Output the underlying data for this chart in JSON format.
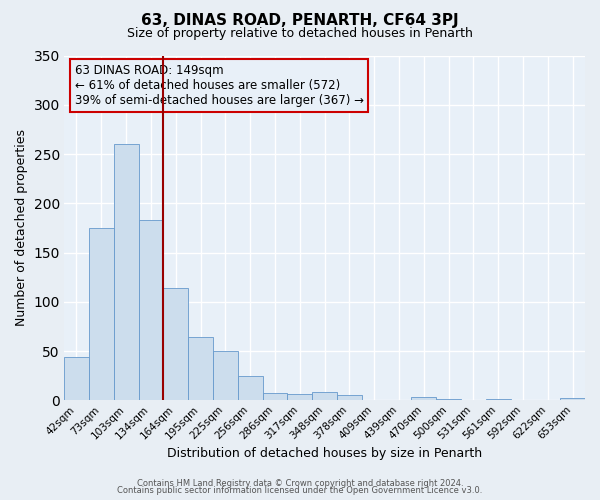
{
  "title": "63, DINAS ROAD, PENARTH, CF64 3PJ",
  "subtitle": "Size of property relative to detached houses in Penarth",
  "xlabel": "Distribution of detached houses by size in Penarth",
  "ylabel": "Number of detached properties",
  "bin_labels": [
    "42sqm",
    "73sqm",
    "103sqm",
    "134sqm",
    "164sqm",
    "195sqm",
    "225sqm",
    "256sqm",
    "286sqm",
    "317sqm",
    "348sqm",
    "378sqm",
    "409sqm",
    "439sqm",
    "470sqm",
    "500sqm",
    "531sqm",
    "561sqm",
    "592sqm",
    "622sqm",
    "653sqm"
  ],
  "bar_heights": [
    44,
    175,
    260,
    183,
    114,
    64,
    50,
    25,
    8,
    7,
    9,
    5,
    0,
    0,
    3,
    1,
    0,
    1,
    0,
    0,
    2
  ],
  "bar_color": "#ccdded",
  "bar_edge_color": "#6699cc",
  "ylim": [
    0,
    350
  ],
  "yticks": [
    0,
    50,
    100,
    150,
    200,
    250,
    300,
    350
  ],
  "vline_x": 3.5,
  "vline_color": "#990000",
  "annotation_title": "63 DINAS ROAD: 149sqm",
  "annotation_line1": "← 61% of detached houses are smaller (572)",
  "annotation_line2": "39% of semi-detached houses are larger (367) →",
  "annotation_box_color": "#cc0000",
  "footer1": "Contains HM Land Registry data © Crown copyright and database right 2024.",
  "footer2": "Contains public sector information licensed under the Open Government Licence v3.0.",
  "fig_background_color": "#e8eef4",
  "plot_background_color": "#e8f0f8",
  "grid_color": "#ffffff"
}
